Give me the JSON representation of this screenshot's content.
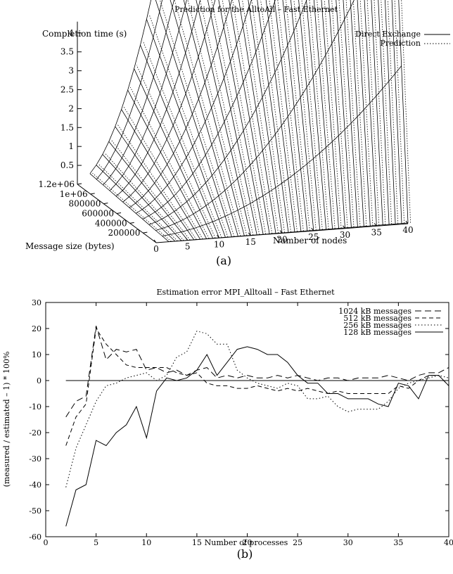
{
  "chart_data": [
    {
      "type": "surface3d",
      "title": "Prediction for the AlltoAll – Fast Ethernet",
      "zlabel": "Completion time (s)",
      "ylabel": "Message size (bytes)",
      "xlabel": "Number of nodes",
      "caption": "(a)",
      "z_ticks": [
        "0.5",
        "1",
        "1.5",
        "2",
        "2.5",
        "3",
        "3.5",
        "4"
      ],
      "y_ticks": [
        "200000",
        "400000",
        "600000",
        "800000",
        "1e+06",
        "1.2e+06"
      ],
      "x_ticks": [
        "0",
        "5",
        "10",
        "15",
        "20",
        "25",
        "30",
        "35",
        "40"
      ],
      "series": [
        {
          "name": "Direct Exchange",
          "style": "solid"
        },
        {
          "name": "Prediction",
          "style": "dotted"
        }
      ],
      "nodes_range": [
        2,
        40
      ],
      "msg_range": [
        0,
        1200000
      ],
      "z_range": [
        0,
        4.3
      ]
    },
    {
      "type": "line",
      "title": "Estimation error MPI_Alltoall – Fast Ethernet",
      "xlabel": "Number of processes",
      "ylabel": "(measured / estimated – 1) * 100%",
      "caption": "(b)",
      "xlim": [
        0,
        40
      ],
      "ylim": [
        -60,
        30
      ],
      "x_ticks": [
        "0",
        "5",
        "10",
        "15",
        "20",
        "25",
        "30",
        "35",
        "40"
      ],
      "y_ticks": [
        "-60",
        "-50",
        "-40",
        "-30",
        "-20",
        "-10",
        "0",
        "10",
        "20",
        "30"
      ],
      "x": [
        2,
        3,
        4,
        5,
        6,
        7,
        8,
        9,
        10,
        11,
        12,
        13,
        14,
        15,
        16,
        17,
        18,
        19,
        20,
        21,
        22,
        23,
        24,
        25,
        26,
        27,
        28,
        29,
        30,
        31,
        32,
        33,
        34,
        35,
        36,
        37,
        38,
        39,
        40
      ],
      "series": [
        {
          "name": "1024 kB messages",
          "dash": "long",
          "values": [
            -14,
            -8,
            -6,
            21,
            8,
            12,
            11,
            12,
            4,
            5,
            3,
            4,
            2,
            4,
            5,
            1,
            2,
            1,
            2,
            1,
            1,
            2,
            1,
            2,
            1,
            0,
            1,
            1,
            0,
            1,
            1,
            1,
            2,
            1,
            0,
            2,
            3,
            3,
            5
          ]
        },
        {
          "name": "512 kB messages",
          "dash": "medium",
          "values": [
            -25,
            -14,
            -9,
            20,
            14,
            10,
            6,
            5,
            5,
            5,
            5,
            3,
            2,
            3,
            -1,
            -2,
            -2,
            -3,
            -3,
            -2,
            -3,
            -4,
            -3,
            -4,
            -3,
            -4,
            -5,
            -4,
            -5,
            -5,
            -5,
            -5,
            -5,
            -2,
            -3,
            0,
            2,
            2,
            -2
          ]
        },
        {
          "name": "256 kB messages",
          "dash": "dotted",
          "values": [
            -41,
            -26,
            -17,
            -8,
            -2,
            -1,
            1,
            2,
            3,
            0,
            2,
            9,
            11,
            19,
            18,
            14,
            14,
            4,
            1,
            -1,
            -2,
            -3,
            -1,
            -2,
            -7,
            -7,
            -6,
            -10,
            -12,
            -11,
            -11,
            -11,
            -8,
            -3,
            -1,
            0,
            1,
            2,
            1
          ]
        },
        {
          "name": "128 kB messages",
          "dash": "solid",
          "values": [
            -56,
            -42,
            -40,
            -23,
            -25,
            -20,
            -17,
            -10,
            -22,
            -4,
            1,
            0,
            1,
            4,
            10,
            2,
            7,
            12,
            13,
            12,
            10,
            10,
            7,
            2,
            -1,
            -1,
            -5,
            -5,
            -7,
            -7,
            -7,
            -9,
            -10,
            -1,
            -2,
            -7,
            2,
            2,
            -2
          ]
        }
      ]
    }
  ]
}
